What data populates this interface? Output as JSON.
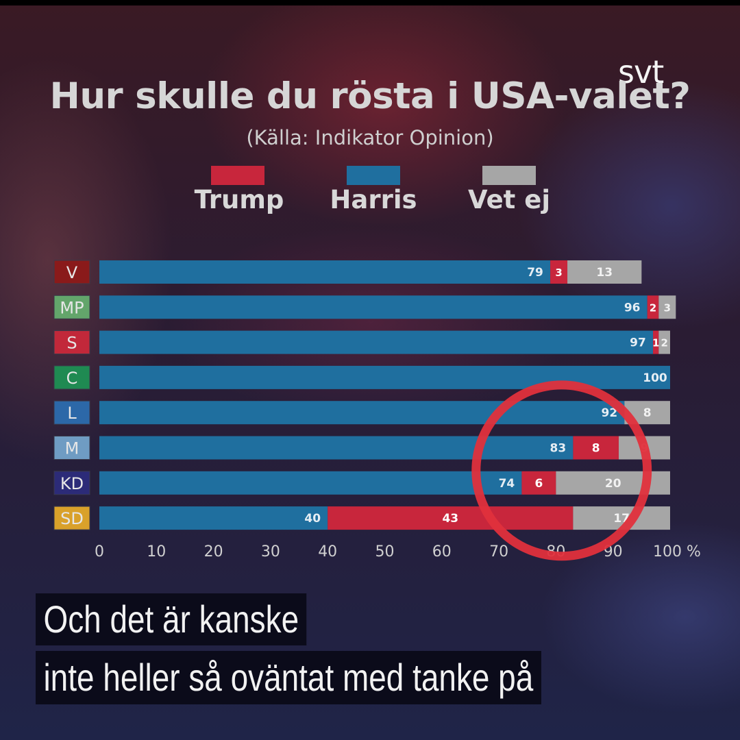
{
  "brand": "svt",
  "title": "Hur skulle du rösta i USA-valet?",
  "subtitle": "(Källa: Indikator Opinion)",
  "caption": {
    "line1": "Och det är kanske",
    "line2": "inte heller så oväntat med tanke på"
  },
  "colors": {
    "trump": "#c8263c",
    "harris": "#1f6f9f",
    "vet_ej": "#a6a6a6",
    "highlight_ring": "#e0303c",
    "party_V": "#8a1a1a",
    "party_MP": "#63a56b",
    "party_S": "#c2283a",
    "party_C": "#1f8a52",
    "party_L": "#2c68a8",
    "party_M": "#6f9cc3",
    "party_KD": "#2c2b78",
    "party_SD": "#d9a12a"
  },
  "chart_data": {
    "type": "bar",
    "orientation": "horizontal",
    "stacked": true,
    "title": "Hur skulle du rösta i USA-valet?",
    "subtitle": "(Källa: Indikator Opinion)",
    "categories": [
      "V",
      "MP",
      "S",
      "C",
      "L",
      "M",
      "KD",
      "SD"
    ],
    "series": [
      {
        "name": "Harris",
        "values": [
          79,
          96,
          97,
          100,
          92,
          83,
          74,
          40
        ]
      },
      {
        "name": "Trump",
        "values": [
          3,
          2,
          1,
          0,
          0,
          8,
          6,
          43
        ]
      },
      {
        "name": "Vet ej",
        "values": [
          13,
          3,
          2,
          0,
          8,
          9,
          20,
          17
        ]
      }
    ],
    "legend": [
      "Trump",
      "Harris",
      "Vet ej"
    ],
    "legend_position": "top",
    "x_ticks": [
      "0",
      "10",
      "20",
      "30",
      "40",
      "50",
      "60",
      "70",
      "80",
      "90",
      "100 %"
    ],
    "xlim": [
      0,
      100
    ],
    "highlight_circle_range": [
      66,
      96
    ]
  }
}
